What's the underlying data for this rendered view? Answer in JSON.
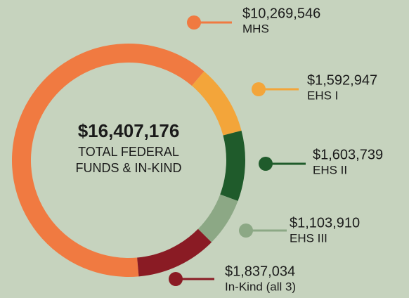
{
  "chart_data": {
    "type": "donut",
    "center_title": "$16,407,176",
    "center_subtitle": [
      "TOTAL FEDERAL",
      "FUNDS & IN-KIND"
    ],
    "categories": [
      "MHS",
      "EHS I",
      "EHS II",
      "EHS III",
      "In-Kind (all 3)"
    ],
    "values": [
      10269546,
      1592947,
      1603739,
      1103910,
      1837034
    ],
    "value_labels": [
      "$10,269,546",
      "$1,592,947",
      "$1,603,739",
      "$1,103,910",
      "$1,837,034"
    ],
    "colors": [
      "#f07a41",
      "#f3a53a",
      "#1f5b2b",
      "#8ca885",
      "#8a1b24"
    ]
  }
}
